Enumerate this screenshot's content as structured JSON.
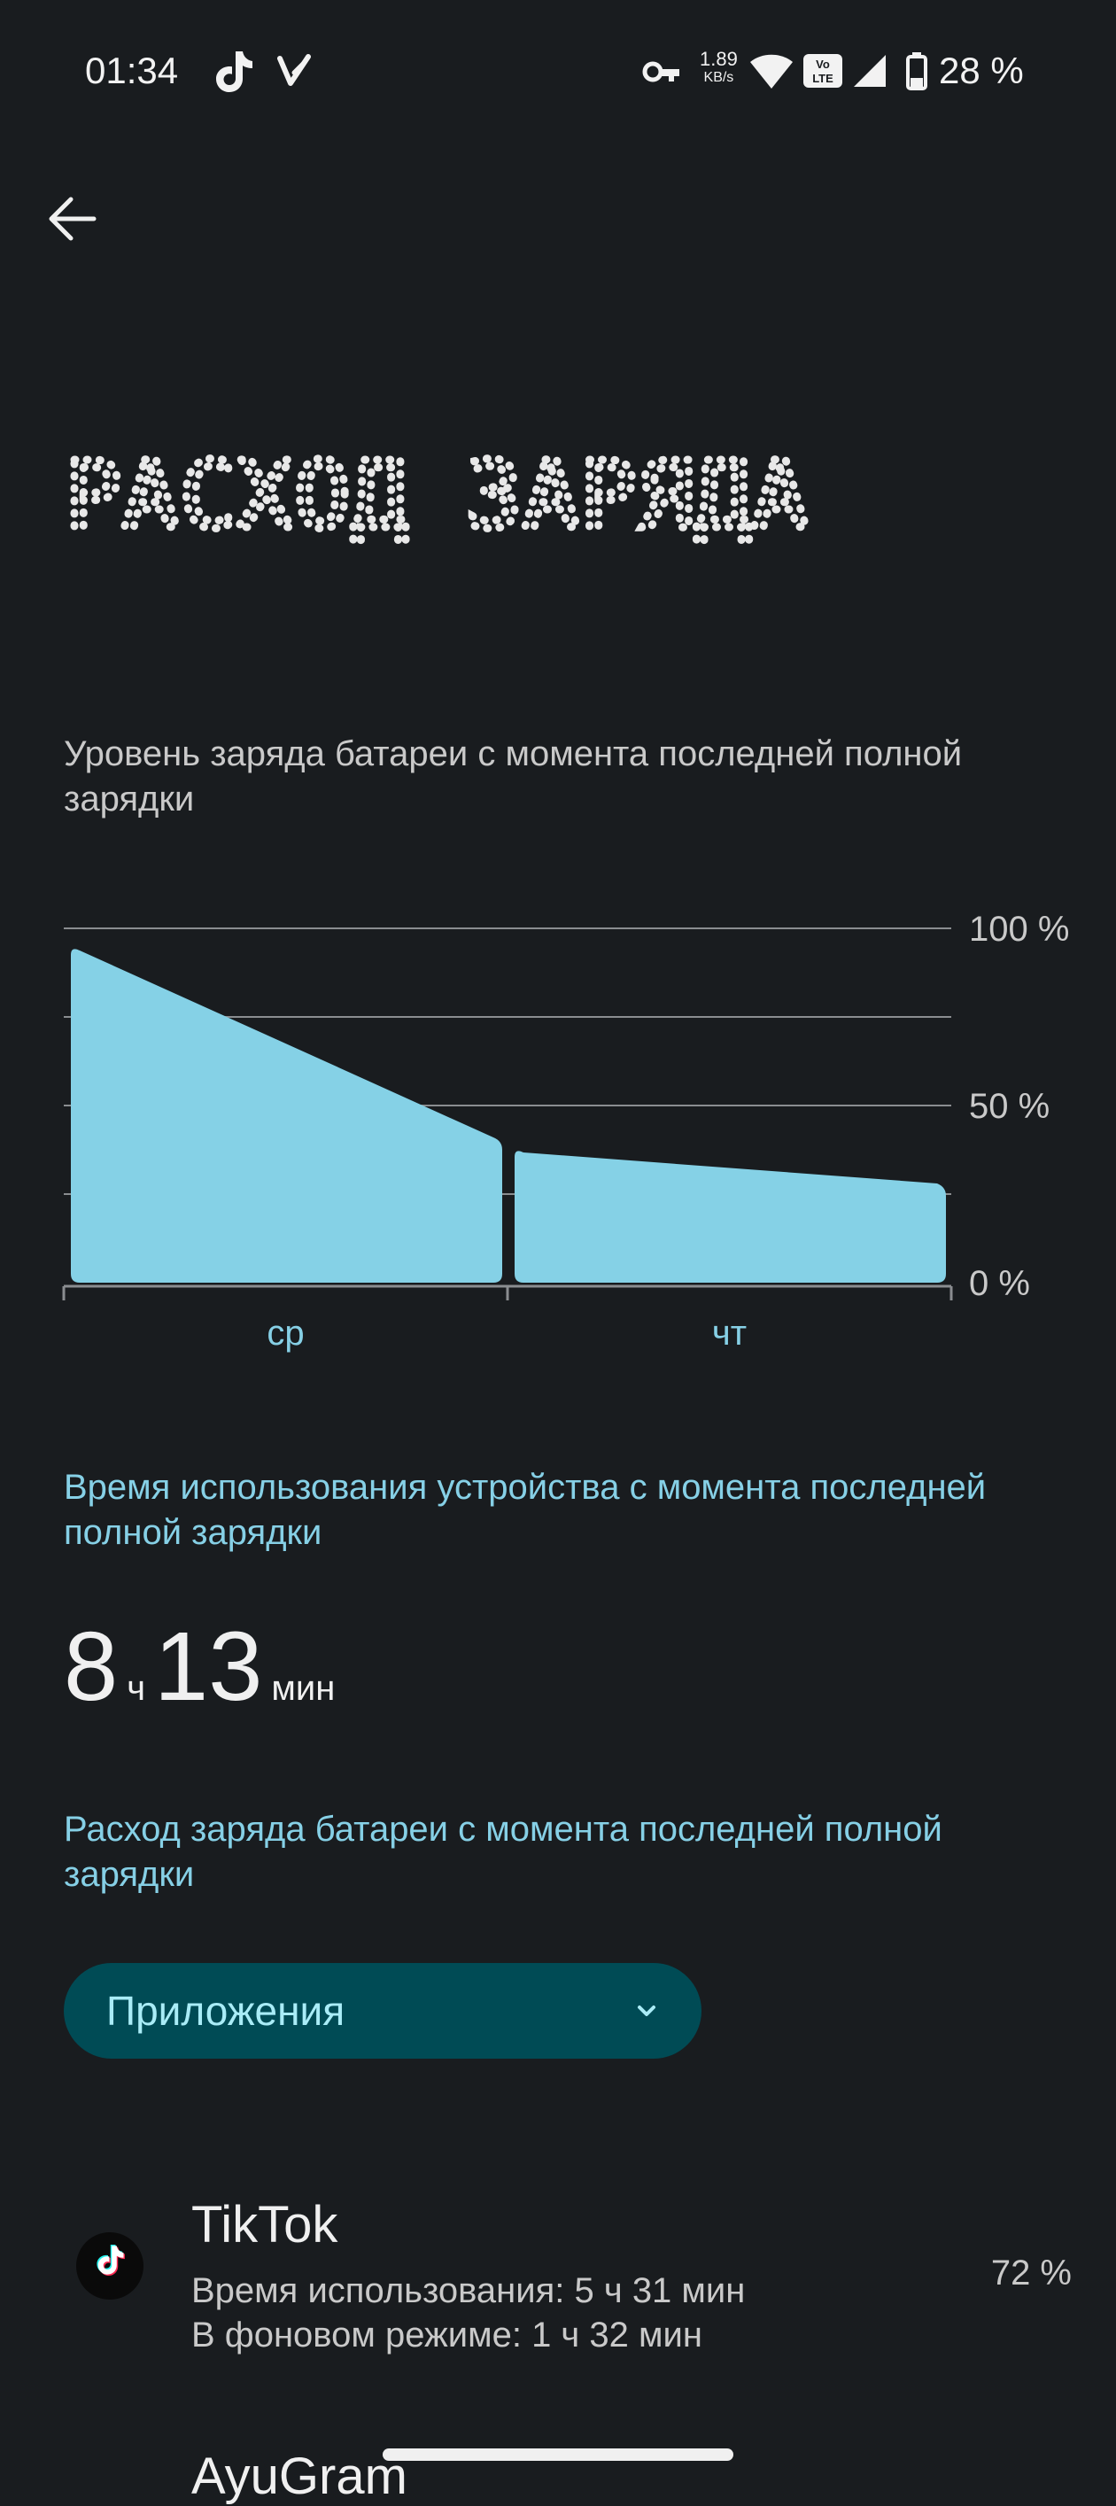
{
  "status_bar": {
    "time": "01:34",
    "net_speed_value": "1.89",
    "net_speed_unit": "KB/s",
    "volte": "Vo LTE",
    "battery": "28 %"
  },
  "header": {
    "title": "РАСХОД ЗАРЯДА"
  },
  "battery_level": {
    "subtitle": "Уровень заряда батареи с момента последней полной зарядки"
  },
  "chart_data": {
    "type": "area",
    "title": "",
    "y_ticks": [
      "100 %",
      "50 %",
      "0 %"
    ],
    "ylim": [
      0,
      100
    ],
    "categories": [
      "ср",
      "чт"
    ],
    "series": [
      {
        "segment": "ср",
        "points": [
          {
            "x": 0,
            "y": 95
          },
          {
            "x": 1,
            "y": 40
          }
        ]
      },
      {
        "segment": "чт",
        "points": [
          {
            "x": 0,
            "y": 38
          },
          {
            "x": 1,
            "y": 27
          }
        ]
      }
    ],
    "grid": true
  },
  "usage": {
    "title": "Время использования устройства с момента последней полной зарядки",
    "hours": "8",
    "hours_unit": "ч",
    "minutes": "13",
    "minutes_unit": "мин"
  },
  "consumption": {
    "title": "Расход заряда батареи с момента последней полной зарядки",
    "dropdown_value": "Приложения"
  },
  "apps": [
    {
      "name": "TikTok",
      "usage_time": "Время использования: 5 ч 31 мин",
      "background_time": "В фоновом режиме: 1 ч 32 мин",
      "percent": "72 %"
    },
    {
      "name": "AyuGram"
    }
  ]
}
